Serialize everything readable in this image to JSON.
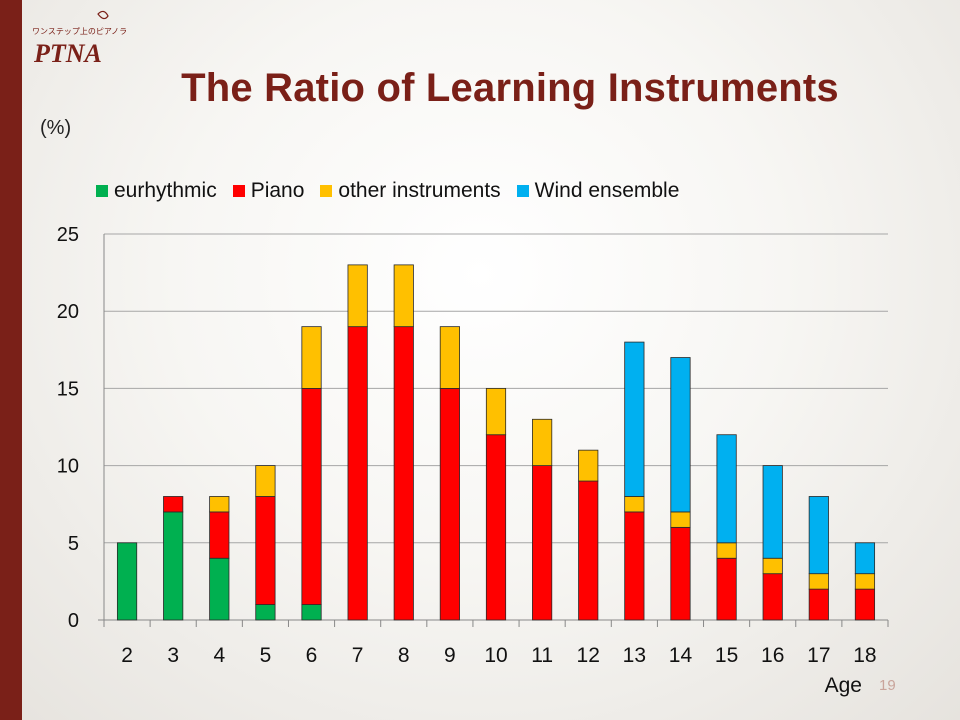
{
  "slide": {
    "logo_tagline": "ワンステップ上のピアノライフへ",
    "logo_text": "PTNA",
    "title": "The Ratio of Learning Instruments",
    "unit_label": "(%)",
    "page_number": "19"
  },
  "colors": {
    "sidebar": "#7a2018",
    "title": "#7a2018"
  },
  "chart_data": {
    "type": "bar",
    "stacked": true,
    "title": "",
    "xlabel": "Age",
    "ylabel": "(%)",
    "ylim": [
      0,
      25
    ],
    "yticks": [
      0,
      5,
      10,
      15,
      20,
      25
    ],
    "grid": true,
    "legend_position": "top",
    "categories": [
      "2",
      "3",
      "4",
      "5",
      "6",
      "7",
      "8",
      "9",
      "10",
      "11",
      "12",
      "13",
      "14",
      "15",
      "16",
      "17",
      "18"
    ],
    "series": [
      {
        "name": "eurhythmic",
        "color": "#00b050",
        "values": [
          5,
          7,
          4,
          1,
          1,
          0,
          0,
          0,
          0,
          0,
          0,
          0,
          0,
          0,
          0,
          0,
          0
        ]
      },
      {
        "name": "Piano",
        "color": "#ff0000",
        "values": [
          0,
          1,
          3,
          7,
          14,
          19,
          19,
          15,
          12,
          10,
          9,
          7,
          6,
          4,
          3,
          2,
          2
        ]
      },
      {
        "name": "other instruments",
        "color": "#ffc000",
        "values": [
          0,
          0,
          1,
          2,
          4,
          4,
          4,
          4,
          3,
          3,
          2,
          1,
          1,
          1,
          1,
          1,
          1
        ]
      },
      {
        "name": "Wind ensemble",
        "color": "#00b0f0",
        "values": [
          0,
          0,
          0,
          0,
          0,
          0,
          0,
          0,
          0,
          0,
          0,
          10,
          10,
          7,
          6,
          5,
          2
        ]
      }
    ]
  }
}
